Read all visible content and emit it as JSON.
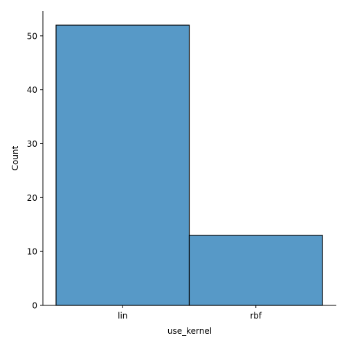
{
  "chart_data": {
    "type": "bar",
    "categories": [
      "lin",
      "rbf"
    ],
    "values": [
      52,
      13
    ],
    "xlabel": "use_kernel",
    "ylabel": "Count",
    "ylim": [
      0,
      54.6
    ],
    "yticks": [
      0,
      10,
      20,
      30,
      40,
      50
    ],
    "grid": false,
    "bar_color": "#5799c7",
    "edge_color": "#000000"
  }
}
